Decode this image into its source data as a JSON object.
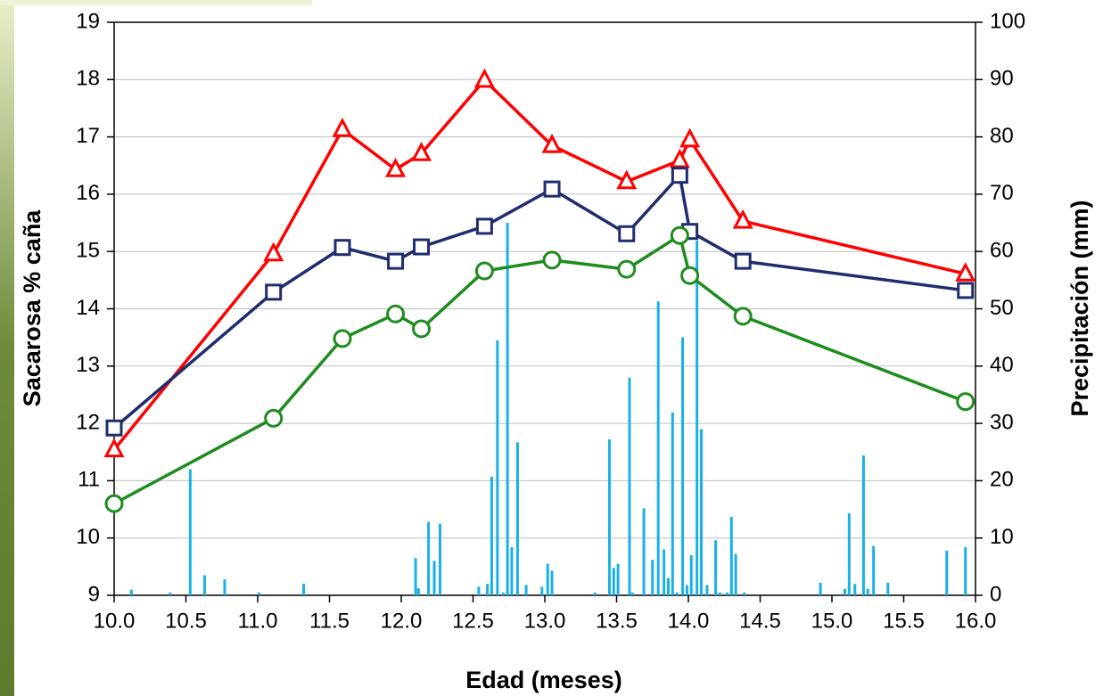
{
  "chart_data": {
    "type": "line",
    "x_label": "Edad (meses)",
    "y_label": "Sacarosa % caña",
    "y2_label": "Precipitación (mm)",
    "xlim": [
      10,
      16
    ],
    "xticks": [
      {
        "value": 10,
        "label": "10.0"
      },
      10.5,
      {
        "value": 11,
        "label": "11.0"
      },
      11.5,
      {
        "value": 12,
        "label": "12.0"
      },
      12.5,
      {
        "value": 13,
        "label": "13.0"
      },
      13.5,
      {
        "value": 14,
        "label": "14.0"
      },
      14.5,
      {
        "value": 15,
        "label": "15.0"
      },
      15.5,
      {
        "value": 16,
        "label": "16.0"
      }
    ],
    "ylim": [
      9,
      19
    ],
    "yticks": [
      9,
      10,
      11,
      12,
      13,
      14,
      15,
      16,
      17,
      18,
      19
    ],
    "y2lim": [
      0,
      100
    ],
    "y2ticks": [
      0,
      10,
      20,
      30,
      40,
      50,
      60,
      70,
      80,
      90,
      100
    ],
    "grid": true,
    "x": [
      10.0,
      11.11,
      11.59,
      11.96,
      12.14,
      12.58,
      13.05,
      13.57,
      13.94,
      14.01,
      14.38,
      15.93
    ],
    "series": [
      {
        "kind": "bar",
        "axis": "y2",
        "color": "#1ab0e8",
        "x": [
          10.12,
          10.39,
          10.53,
          10.63,
          10.77,
          11.01,
          11.32,
          12.1,
          12.12,
          12.19,
          12.23,
          12.27,
          12.54,
          12.6,
          12.63,
          12.67,
          12.71,
          12.74,
          12.77,
          12.81,
          12.87,
          12.98,
          13.02,
          13.05,
          13.35,
          13.45,
          13.48,
          13.51,
          13.59,
          13.61,
          13.69,
          13.75,
          13.79,
          13.83,
          13.86,
          13.89,
          13.92,
          13.96,
          13.99,
          14.02,
          14.06,
          14.09,
          14.13,
          14.19,
          14.22,
          14.27,
          14.3,
          14.33,
          14.39,
          14.92,
          15.09,
          15.12,
          15.16,
          15.22,
          15.25,
          15.29,
          15.39,
          15.8,
          15.93
        ],
        "values": [
          1,
          0.5,
          22,
          3.5,
          2.8,
          0.5,
          2,
          6.5,
          1.2,
          12.8,
          6,
          12.5,
          1.5,
          2,
          20.7,
          44.5,
          0.5,
          65,
          8.4,
          26.7,
          1.8,
          1.5,
          5.5,
          4.3,
          0.5,
          27.2,
          4.8,
          5.5,
          38,
          0.5,
          15.2,
          6.2,
          51.3,
          8,
          3,
          31.9,
          0.5,
          45,
          1.8,
          7,
          61.9,
          29,
          1.8,
          9.6,
          0.5,
          0.5,
          13.7,
          7.2,
          0.5,
          2.2,
          1.1,
          14.3,
          2,
          24.4,
          1.1,
          8.6,
          2.2,
          7.8,
          8.4
        ]
      },
      {
        "kind": "line",
        "marker": "triangle",
        "color": "#ff0000",
        "values": [
          11.54,
          14.96,
          17.13,
          16.43,
          16.71,
          17.99,
          16.85,
          16.22,
          16.59,
          16.95,
          15.53,
          14.61
        ]
      },
      {
        "kind": "line",
        "marker": "square",
        "color": "#1f2d6e",
        "values": [
          11.92,
          14.29,
          15.07,
          14.83,
          15.08,
          15.44,
          16.09,
          15.31,
          16.33,
          15.35,
          14.83,
          14.32
        ]
      },
      {
        "kind": "line",
        "marker": "circle",
        "color": "#1e8c1e",
        "values": [
          10.6,
          12.09,
          13.48,
          13.91,
          13.65,
          14.66,
          14.85,
          14.69,
          15.28,
          14.58,
          13.87,
          12.38
        ]
      }
    ]
  }
}
